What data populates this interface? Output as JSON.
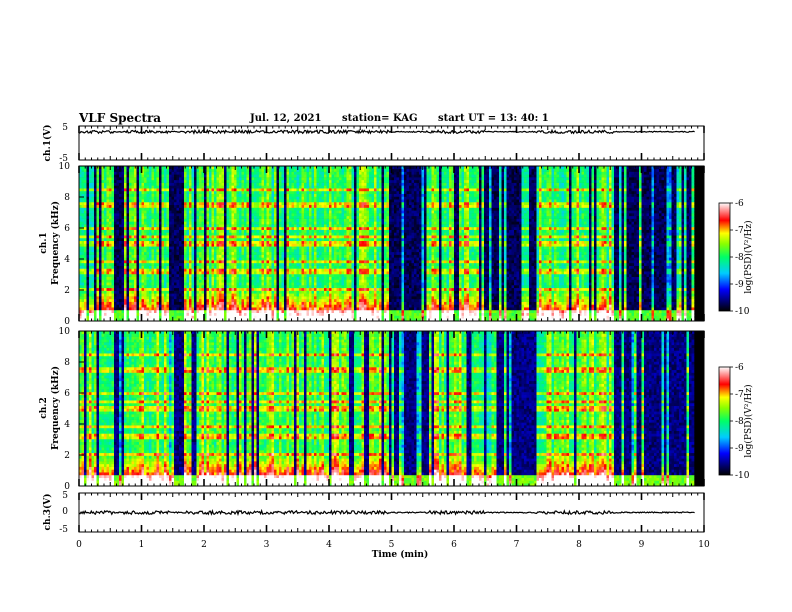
{
  "header": {
    "title": "VLF Spectra",
    "date": "Jul. 12, 2021",
    "station": "station= KAG",
    "start": "start UT =  13: 40: 1"
  },
  "chart_data": [
    {
      "type": "line",
      "panel": "waveform-ch1",
      "ylabel": "ch.1(V)",
      "ylim": [
        -5,
        5
      ],
      "yticks": [
        "5",
        "-5"
      ],
      "xlim": [
        0,
        10
      ],
      "baseline": 3.3
    },
    {
      "type": "heatmap",
      "panel": "spectrogram-ch1",
      "ylabel_line1": "ch.1",
      "ylabel_line2": "Frequency (kHz)",
      "ylim": [
        0,
        10
      ],
      "yticks": [
        "0",
        "2",
        "4",
        "6",
        "8",
        "10"
      ],
      "xlim": [
        0,
        10
      ],
      "colorbar": {
        "label": "log(PSD)(V²/Hz)",
        "range": [
          -10,
          -6
        ],
        "ticks": [
          "-6",
          "-7",
          "-8",
          "-9",
          "-10"
        ]
      }
    },
    {
      "type": "heatmap",
      "panel": "spectrogram-ch2",
      "ylabel_line1": "ch.2",
      "ylabel_line2": "Frequency (kHz)",
      "ylim": [
        0,
        10
      ],
      "yticks": [
        "0",
        "2",
        "4",
        "6",
        "8",
        "10"
      ],
      "xlim": [
        0,
        10
      ],
      "colorbar": {
        "label": "log(PSD)(V²/Hz)",
        "range": [
          -10,
          -6
        ],
        "ticks": [
          "-6",
          "-7",
          "-8",
          "-9",
          "-10"
        ]
      }
    },
    {
      "type": "line",
      "panel": "waveform-ch3",
      "ylabel": "ch.3(V)",
      "ylim": [
        -5,
        5
      ],
      "yticks": [
        "5",
        "0",
        "-5"
      ],
      "xlim": [
        0,
        10
      ],
      "xlabel": "Time (min)",
      "xticks": [
        "0",
        "1",
        "2",
        "3",
        "4",
        "5",
        "6",
        "7",
        "8",
        "9",
        "10"
      ],
      "baseline": 0.0
    }
  ]
}
